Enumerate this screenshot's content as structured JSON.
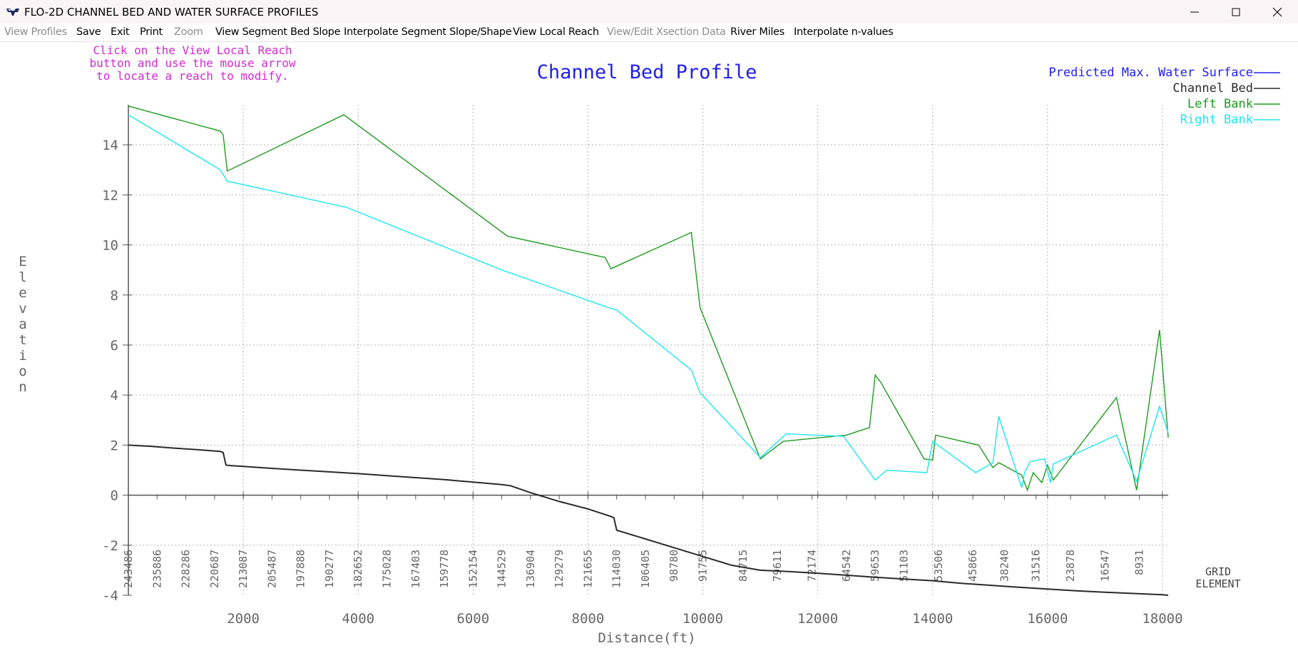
{
  "window": {
    "title": "FLO-2D CHANNEL BED AND WATER SURFACE PROFILES",
    "controls": [
      "minimize-icon",
      "maximize-icon",
      "close-icon"
    ]
  },
  "menu": [
    {
      "label": "View Profiles",
      "enabled": false
    },
    {
      "label": "Save",
      "enabled": true
    },
    {
      "label": "Exit",
      "enabled": true
    },
    {
      "label": "Print",
      "enabled": true
    },
    {
      "label": "Zoom",
      "enabled": false
    },
    {
      "label": "View Segment Bed Slope",
      "enabled": true
    },
    {
      "label": "Interpolate Segment Slope/Shape",
      "enabled": true
    },
    {
      "label": "View Local Reach",
      "enabled": true
    },
    {
      "label": "View/Edit Xsection Data",
      "enabled": false
    },
    {
      "label": "River Miles",
      "enabled": true
    },
    {
      "label": "Interpolate n-values",
      "enabled": true
    }
  ],
  "instruction_lines": [
    "Click on the View Local Reach",
    "button and use the mouse arrow",
    "to locate a reach to modify."
  ],
  "colors": {
    "instruction": "#d22ad2",
    "title": "#2020ee",
    "water_surface": "#2020ee",
    "channel_bed": "#2a2a2a",
    "left_bank": "#1e9a1e",
    "right_bank": "#1ee6f0",
    "axis": "#555555",
    "grid": "#b4b4b4"
  },
  "chart_data": {
    "type": "line",
    "title": "Channel Bed Profile",
    "xlabel": "Distance(ft)",
    "ylabel": "Elevation",
    "xlim": [
      0,
      18100
    ],
    "ylim": [
      -4,
      15.6
    ],
    "x_ticks": [
      2000,
      4000,
      6000,
      8000,
      10000,
      12000,
      14000,
      16000,
      18000
    ],
    "y_ticks": [
      -4,
      -2,
      0,
      2,
      4,
      6,
      8,
      10,
      12,
      14
    ],
    "grid": true,
    "legend_position": "top-right",
    "grid_element_label": [
      "GRID",
      "ELEMENT"
    ],
    "grid_elements": [
      {
        "x": 0,
        "label": "243486"
      },
      {
        "x": 500,
        "label": "235886"
      },
      {
        "x": 1000,
        "label": "228286"
      },
      {
        "x": 1500,
        "label": "220687"
      },
      {
        "x": 2000,
        "label": "213087"
      },
      {
        "x": 2500,
        "label": "205487"
      },
      {
        "x": 3000,
        "label": "197888"
      },
      {
        "x": 3500,
        "label": "190277"
      },
      {
        "x": 4000,
        "label": "182652"
      },
      {
        "x": 4500,
        "label": "175028"
      },
      {
        "x": 5000,
        "label": "167403"
      },
      {
        "x": 5500,
        "label": "159778"
      },
      {
        "x": 6000,
        "label": "152154"
      },
      {
        "x": 6500,
        "label": "144529"
      },
      {
        "x": 7000,
        "label": "136904"
      },
      {
        "x": 7500,
        "label": "129279"
      },
      {
        "x": 8000,
        "label": "121655"
      },
      {
        "x": 8500,
        "label": "114030"
      },
      {
        "x": 9000,
        "label": "106405"
      },
      {
        "x": 9500,
        "label": "98780"
      },
      {
        "x": 10000,
        "label": "91755"
      },
      {
        "x": 10700,
        "label": "84715"
      },
      {
        "x": 11300,
        "label": "79611"
      },
      {
        "x": 11900,
        "label": "72174"
      },
      {
        "x": 12500,
        "label": "64542"
      },
      {
        "x": 13000,
        "label": "59653"
      },
      {
        "x": 13500,
        "label": "51103"
      },
      {
        "x": 14100,
        "label": "53506"
      },
      {
        "x": 14700,
        "label": "45866"
      },
      {
        "x": 15250,
        "label": "38240"
      },
      {
        "x": 15800,
        "label": "31516"
      },
      {
        "x": 16400,
        "label": "23878"
      },
      {
        "x": 17000,
        "label": "16547"
      },
      {
        "x": 17600,
        "label": "8931"
      }
    ],
    "series": [
      {
        "name": "Predicted Max. Water Surface",
        "color": "#2020ee",
        "points": []
      },
      {
        "name": "Channel Bed",
        "color": "#2a2a2a",
        "points": [
          [
            0,
            2.0
          ],
          [
            400,
            1.95
          ],
          [
            800,
            1.88
          ],
          [
            1200,
            1.82
          ],
          [
            1600,
            1.75
          ],
          [
            1650,
            1.7
          ],
          [
            1700,
            1.2
          ],
          [
            1800,
            1.18
          ],
          [
            2000,
            1.15
          ],
          [
            2500,
            1.07
          ],
          [
            3000,
            1.0
          ],
          [
            3500,
            0.93
          ],
          [
            4000,
            0.86
          ],
          [
            4500,
            0.78
          ],
          [
            5000,
            0.7
          ],
          [
            5500,
            0.62
          ],
          [
            6000,
            0.52
          ],
          [
            6500,
            0.42
          ],
          [
            6650,
            0.38
          ],
          [
            7000,
            0.1
          ],
          [
            7500,
            -0.25
          ],
          [
            8000,
            -0.55
          ],
          [
            8400,
            -0.85
          ],
          [
            8450,
            -0.9
          ],
          [
            8500,
            -1.4
          ],
          [
            9000,
            -1.75
          ],
          [
            9500,
            -2.1
          ],
          [
            10000,
            -2.45
          ],
          [
            10500,
            -2.8
          ],
          [
            11000,
            -3.0
          ],
          [
            11500,
            -3.05
          ],
          [
            12000,
            -3.12
          ],
          [
            12500,
            -3.2
          ],
          [
            13000,
            -3.28
          ],
          [
            13500,
            -3.35
          ],
          [
            14000,
            -3.42
          ],
          [
            14500,
            -3.52
          ],
          [
            15000,
            -3.6
          ],
          [
            15500,
            -3.68
          ],
          [
            16000,
            -3.75
          ],
          [
            16500,
            -3.82
          ],
          [
            17000,
            -3.88
          ],
          [
            17500,
            -3.93
          ],
          [
            18000,
            -3.98
          ],
          [
            18100,
            -4.0
          ]
        ]
      },
      {
        "name": "Left Bank",
        "color": "#1e9a1e",
        "points": [
          [
            0,
            15.55
          ],
          [
            1600,
            14.55
          ],
          [
            1650,
            14.4
          ],
          [
            1720,
            12.95
          ],
          [
            3750,
            15.2
          ],
          [
            6600,
            10.35
          ],
          [
            8200,
            9.55
          ],
          [
            8300,
            9.5
          ],
          [
            8400,
            9.05
          ],
          [
            9800,
            10.5
          ],
          [
            9950,
            7.5
          ],
          [
            11000,
            1.45
          ],
          [
            11400,
            2.15
          ],
          [
            12500,
            2.4
          ],
          [
            12900,
            2.7
          ],
          [
            13000,
            4.8
          ],
          [
            13100,
            4.5
          ],
          [
            13850,
            1.45
          ],
          [
            14000,
            1.4
          ],
          [
            14050,
            2.4
          ],
          [
            14800,
            2.0
          ],
          [
            15050,
            1.1
          ],
          [
            15150,
            1.3
          ],
          [
            15550,
            0.8
          ],
          [
            15650,
            0.2
          ],
          [
            15750,
            0.9
          ],
          [
            15900,
            0.5
          ],
          [
            16000,
            1.2
          ],
          [
            16100,
            0.6
          ],
          [
            17200,
            3.9
          ],
          [
            17550,
            0.2
          ],
          [
            17950,
            6.6
          ],
          [
            18100,
            2.3
          ]
        ]
      },
      {
        "name": "Right Bank",
        "color": "#1ee6f0",
        "points": [
          [
            0,
            15.2
          ],
          [
            1600,
            13.0
          ],
          [
            1720,
            12.55
          ],
          [
            3800,
            11.5
          ],
          [
            6500,
            9.0
          ],
          [
            8350,
            7.5
          ],
          [
            8500,
            7.4
          ],
          [
            9800,
            5.0
          ],
          [
            9950,
            4.1
          ],
          [
            11000,
            1.5
          ],
          [
            11450,
            2.45
          ],
          [
            12450,
            2.35
          ],
          [
            13000,
            0.6
          ],
          [
            13200,
            1.0
          ],
          [
            13900,
            0.9
          ],
          [
            14000,
            2.15
          ],
          [
            14750,
            0.9
          ],
          [
            15050,
            1.3
          ],
          [
            15150,
            3.15
          ],
          [
            15550,
            0.3
          ],
          [
            15600,
            0.9
          ],
          [
            15700,
            1.35
          ],
          [
            15950,
            1.45
          ],
          [
            16050,
            0.5
          ],
          [
            16100,
            1.25
          ],
          [
            17200,
            2.4
          ],
          [
            17550,
            0.55
          ],
          [
            17950,
            3.55
          ],
          [
            18100,
            2.5
          ]
        ]
      }
    ]
  }
}
